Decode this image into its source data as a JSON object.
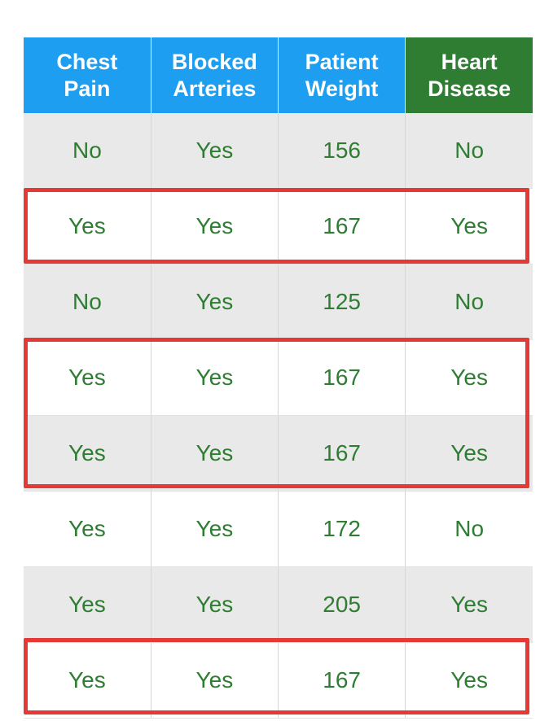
{
  "headers": [
    {
      "line1": "Chest",
      "line2": "Pain"
    },
    {
      "line1": "Blocked",
      "line2": "Arteries"
    },
    {
      "line1": "Patient",
      "line2": "Weight"
    },
    {
      "line1": "Heart",
      "line2": "Disease"
    }
  ],
  "rows": [
    [
      "No",
      "Yes",
      "156",
      "No"
    ],
    [
      "Yes",
      "Yes",
      "167",
      "Yes"
    ],
    [
      "No",
      "Yes",
      "125",
      "No"
    ],
    [
      "Yes",
      "Yes",
      "167",
      "Yes"
    ],
    [
      "Yes",
      "Yes",
      "167",
      "Yes"
    ],
    [
      "Yes",
      "Yes",
      "172",
      "No"
    ],
    [
      "Yes",
      "Yes",
      "205",
      "Yes"
    ],
    [
      "Yes",
      "Yes",
      "167",
      "Yes"
    ]
  ],
  "colors": {
    "feature_header": "#1e9ef0",
    "target_header": "#2e7d32",
    "cell_text": "#2e7d32",
    "highlight": "#e53935",
    "shaded_row": "#e9e9e9"
  }
}
